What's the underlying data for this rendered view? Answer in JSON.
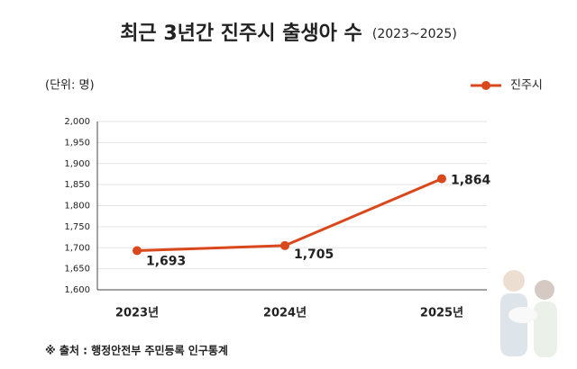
{
  "chart_data": {
    "type": "line",
    "title": "최근 3년간 진주시 출생아 수",
    "subtitle": "(2023~2025)",
    "unit_label": "(단위: 명)",
    "source": "※ 출처 : 행정안전부 주민등록 인구통계",
    "categories": [
      "2023년",
      "2024년",
      "2025년"
    ],
    "series": [
      {
        "name": "진주시",
        "color": "#d9481c",
        "values": [
          1693,
          1705,
          1864
        ],
        "value_labels": [
          "1,693",
          "1,705",
          "1,864"
        ]
      }
    ],
    "ylim": [
      1600,
      2000
    ],
    "yticks": [
      {
        "value": 1600,
        "label": "1,600"
      },
      {
        "value": 1650,
        "label": "1,650"
      },
      {
        "value": 1700,
        "label": "1,700"
      },
      {
        "value": 1750,
        "label": "1,750"
      },
      {
        "value": 1800,
        "label": "1,800"
      },
      {
        "value": 1850,
        "label": "1,850"
      },
      {
        "value": 1900,
        "label": "1,900"
      },
      {
        "value": 1950,
        "label": "1,950"
      },
      {
        "value": 2000,
        "label": "2,000"
      }
    ],
    "grid": true,
    "legend": "top-right"
  }
}
